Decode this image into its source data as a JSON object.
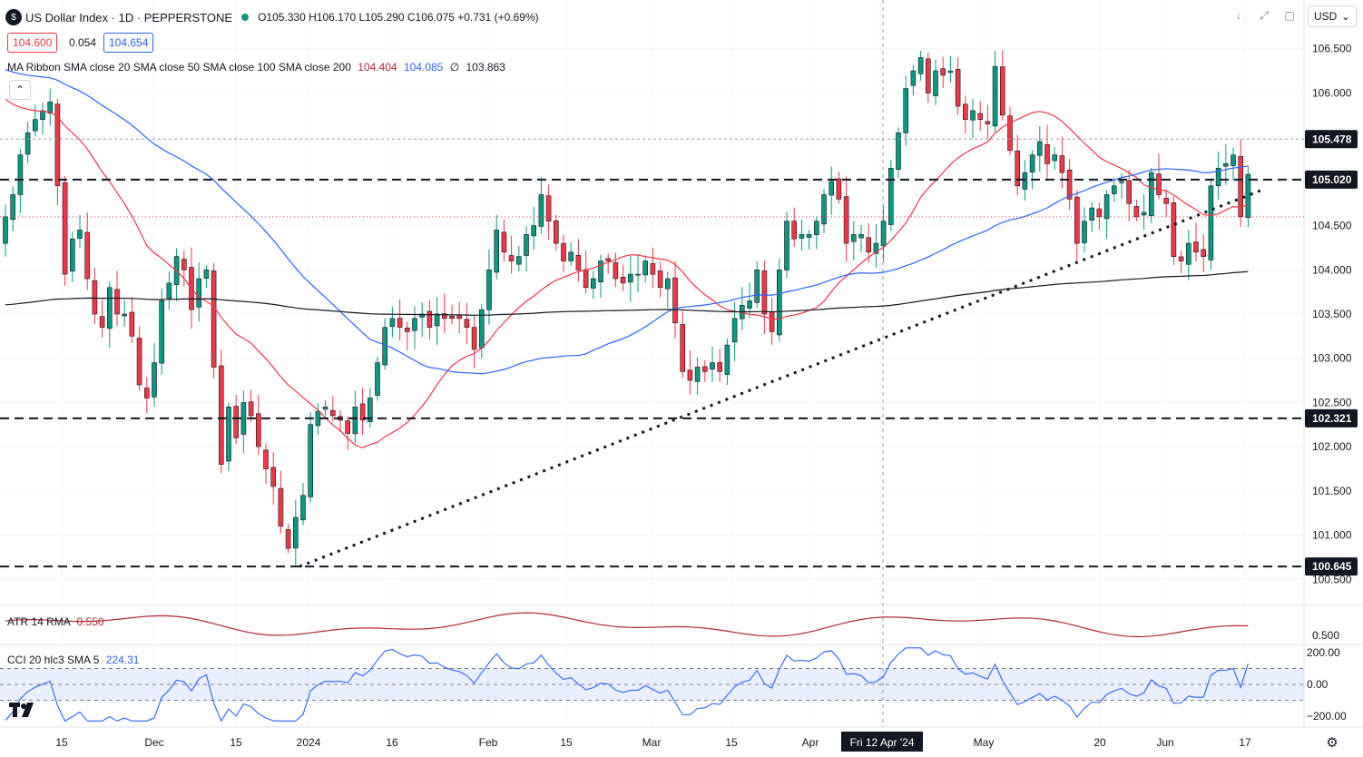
{
  "header": {
    "title": "US Dollar Index · 1D · PEPPERSTONE",
    "ohlc": "O105.330 H106.170 L105.290 C106.075 +0.731 (+0.69%)",
    "bid": "104.600",
    "spread": "0.054",
    "ask": "104.654",
    "currency": "USD"
  },
  "indicators": {
    "ma_ribbon": {
      "label": "MA Ribbon SMA close 20 SMA close 50 SMA close 100 SMA close 200",
      "v20": "104.404",
      "v50": "104.085",
      "v100": "∅",
      "v200": "103.863"
    },
    "atr": {
      "label": "ATR 14 RMA",
      "value": "0.550"
    },
    "cci": {
      "label": "CCI 20 hlc3 SMA 5",
      "value": "224.31"
    }
  },
  "icons": [
    "down-arrow-icon",
    "expand-icon",
    "restore-icon",
    "close-icon",
    "collapse-icon",
    "gear-icon",
    "tradingview-logo-icon",
    "chevron-down-icon"
  ],
  "colors": {
    "up": "#089981",
    "down": "#f23645",
    "sma20": "#f23645",
    "sma50": "#2962ff",
    "sma200": "#131722",
    "atr": "#b22833",
    "cci": "#2962ff"
  },
  "chart_data": {
    "type": "candlestick",
    "title": "US Dollar Index · 1D · PEPPERSTONE",
    "price_axis": {
      "ticks": [
        106.5,
        106.0,
        105.5,
        105.0,
        104.5,
        104.0,
        103.5,
        103.0,
        102.5,
        102.0,
        101.5,
        101.0,
        100.5
      ],
      "tick_labels": [
        "106.500",
        "106.000",
        "105.500",
        "105.000",
        "104.500",
        "104.000",
        "103.500",
        "103.000",
        "102.500",
        "102.000",
        "101.500",
        "101.000",
        "100.500"
      ],
      "range": [
        100.35,
        106.65
      ]
    },
    "time_axis": {
      "labels": [
        "15",
        "Dec",
        "15",
        "2024",
        "16",
        "Feb",
        "15",
        "Mar",
        "15",
        "Apr",
        "Fri 12 Apr '24",
        "May",
        "20",
        "Jun",
        "17"
      ]
    },
    "horizontal_levels": [
      {
        "value": 105.478,
        "label": "105.478",
        "style": "dotted-gray"
      },
      {
        "value": 105.02,
        "label": "105.020",
        "style": "dashed-black"
      },
      {
        "value": 102.321,
        "label": "102.321",
        "style": "dashed-black"
      },
      {
        "value": 100.645,
        "label": "100.645",
        "style": "dashed-black"
      },
      {
        "value": 104.6,
        "label": "",
        "style": "dotted-red"
      }
    ],
    "trendline": {
      "from": {
        "date": "2023-12-28",
        "value": 100.645
      },
      "to": {
        "date": "2024-06-14",
        "value": 104.9
      },
      "style": "dotted"
    },
    "crosshair_date": "Fri 12 Apr '24",
    "closes": [
      104.6,
      104.85,
      105.3,
      105.55,
      105.7,
      105.8,
      105.9,
      104.95,
      103.95,
      104.35,
      104.45,
      103.9,
      103.5,
      103.35,
      103.8,
      103.5,
      103.5,
      103.25,
      102.7,
      102.55,
      102.95,
      103.65,
      103.85,
      104.15,
      104.0,
      103.55,
      103.9,
      104.0,
      102.9,
      101.8,
      102.45,
      102.1,
      102.5,
      102.35,
      102.0,
      101.75,
      101.55,
      101.1,
      100.85,
      101.2,
      101.45,
      102.25,
      102.4,
      102.45,
      102.35,
      102.3,
      102.15,
      102.45,
      102.3,
      102.55,
      102.95,
      103.35,
      103.45,
      103.35,
      103.3,
      103.45,
      103.5,
      103.35,
      103.5,
      103.45,
      103.45,
      103.45,
      103.35,
      103.1,
      103.55,
      104.0,
      104.45,
      104.2,
      104.1,
      104.15,
      104.4,
      104.5,
      104.85,
      104.55,
      104.3,
      104.1,
      104.2,
      104.0,
      103.8,
      103.9,
      104.1,
      104.1,
      103.9,
      103.85,
      103.95,
      103.95,
      104.1,
      103.95,
      103.8,
      103.9,
      103.4,
      102.85,
      102.75,
      102.9,
      102.85,
      102.95,
      102.85,
      103.15,
      103.45,
      103.6,
      103.65,
      104.0,
      103.5,
      103.3,
      104.0,
      104.55,
      104.35,
      104.4,
      104.4,
      104.55,
      104.85,
      105.0,
      104.8,
      104.3,
      104.4,
      104.4,
      104.2,
      104.3,
      104.55,
      105.15,
      105.55,
      106.05,
      106.25,
      106.4,
      106.0,
      106.25,
      106.2,
      106.25,
      105.85,
      105.7,
      105.8,
      105.7,
      105.65,
      106.3,
      105.75,
      105.35,
      104.95,
      105.1,
      105.3,
      105.45,
      105.2,
      105.3,
      105.1,
      104.8,
      104.3,
      104.55,
      104.7,
      104.6,
      104.85,
      104.95,
      105.0,
      104.75,
      104.6,
      104.65,
      105.1,
      104.85,
      104.75,
      104.15,
      104.1,
      104.3,
      104.2,
      104.15,
      104.95,
      105.15,
      105.2,
      105.3,
      104.6,
      105.08
    ]
  }
}
